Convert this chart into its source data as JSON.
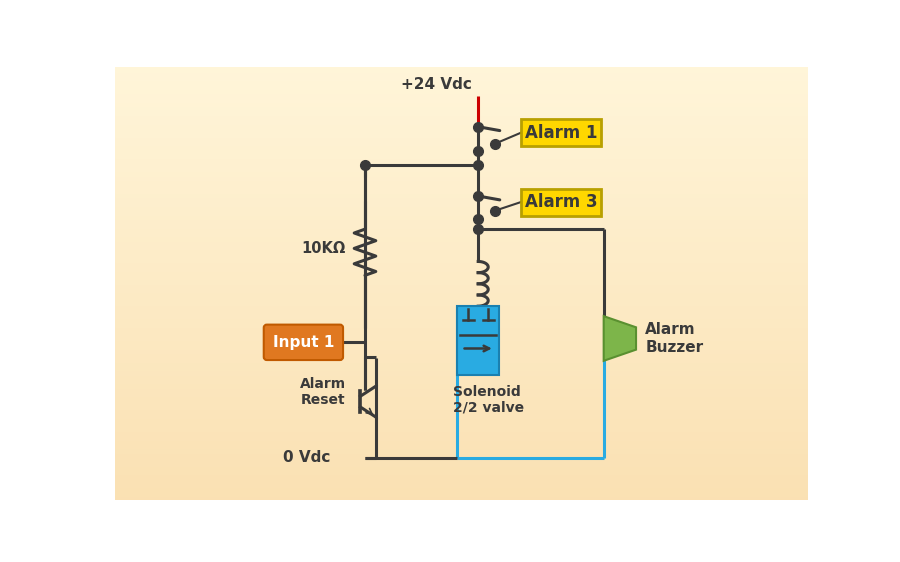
{
  "wire_color": "#3a3a3a",
  "wire_lw": 2.2,
  "blue_wire_color": "#29ABE2",
  "blue_wire_lw": 2.2,
  "red_wire_color": "#CC0000",
  "dot_color": "#3a3a3a",
  "dot_size": 7,
  "vdc_plus_label": "+24 Vdc",
  "vdc_minus_label": "0 Vdc",
  "resistor_label": "10KΩ",
  "alarm1_label": "Alarm 1",
  "alarm3_label": "Alarm 3",
  "input1_label": "Input 1",
  "alarm_reset_label": "Alarm\nReset",
  "solenoid_label": "Solenoid\n2/2 valve",
  "buzzer_label": "Alarm\nBuzzer",
  "alarm_box_color": "#FFD700",
  "alarm_box_border": "#B8A000",
  "input_box_color": "#E07820",
  "input_box_border": "#C05A00",
  "font_color": "#3a3a3a",
  "solenoid_color": "#29ABE2",
  "solenoid_border": "#1a80b0",
  "buzzer_color": "#7DB54A",
  "buzzer_border": "#5a9030"
}
